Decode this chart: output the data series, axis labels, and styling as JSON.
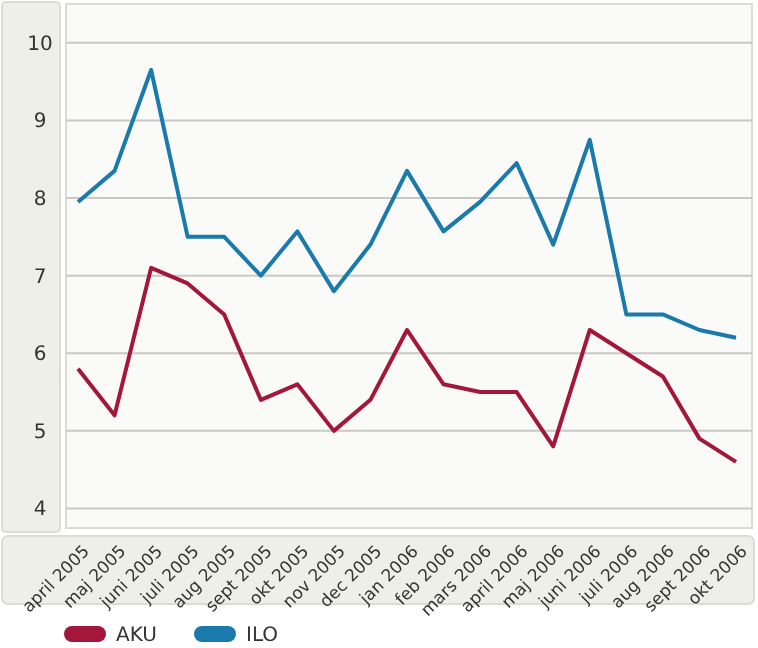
{
  "chart_data": {
    "type": "line",
    "categories": [
      "april 2005",
      "maj 2005",
      "juni 2005",
      "juli 2005",
      "aug 2005",
      "sept 2005",
      "okt 2005",
      "nov 2005",
      "dec 2005",
      "jan 2006",
      "feb 2006",
      "mars 2006",
      "april 2006",
      "maj 2006",
      "juni 2006",
      "juli 2006",
      "aug 2006",
      "sept 2006",
      "okt 2006"
    ],
    "series": [
      {
        "name": "AKU",
        "color": "#a3173a",
        "values": [
          5.8,
          5.2,
          7.1,
          6.9,
          6.5,
          5.4,
          5.6,
          5.0,
          5.4,
          6.3,
          5.6,
          5.5,
          5.5,
          4.8,
          6.3,
          6.0,
          5.7,
          4.9,
          4.6
        ]
      },
      {
        "name": "ILO",
        "color": "#1a7aac",
        "values": [
          7.95,
          8.35,
          9.65,
          7.5,
          7.5,
          7.0,
          7.57,
          6.8,
          7.4,
          8.35,
          7.57,
          7.95,
          8.45,
          7.4,
          8.75,
          6.5,
          6.5,
          6.3,
          6.2
        ]
      }
    ],
    "ylim": [
      3.8,
      10.5
    ],
    "yticks": [
      4,
      5,
      6,
      7,
      8,
      9,
      10
    ],
    "grid": "y",
    "legend": "bottom",
    "marker": "none",
    "line_style": "solid"
  }
}
